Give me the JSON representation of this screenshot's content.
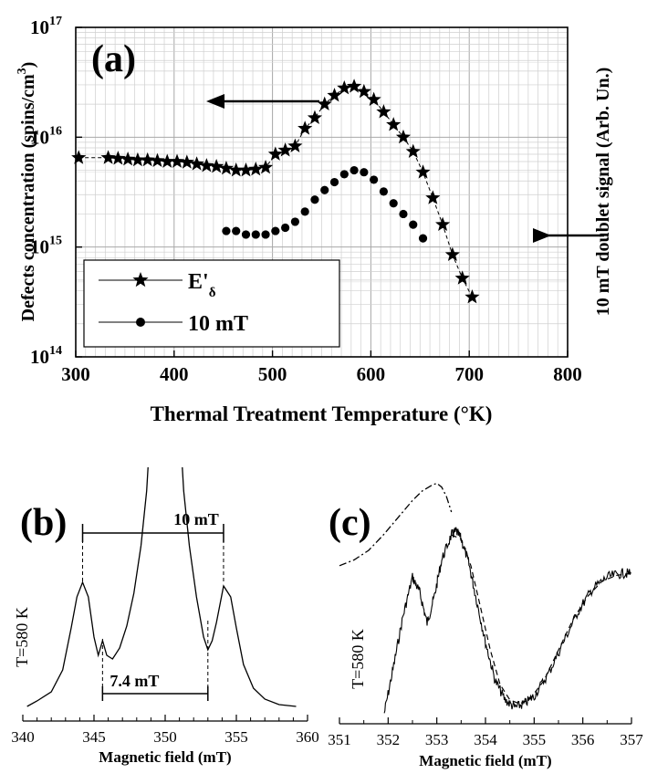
{
  "chart_data": [
    {
      "panel": "(a)",
      "type": "scatter",
      "xlabel": "Thermal Treatment Temperature (°K)",
      "ylabel_left": "Defects concentration (spins/cm",
      "ylabel_left_sup": "3",
      "ylabel_left_close": ")",
      "ylabel_right": "10 mT doublet signal (Arb. Un.)",
      "xlim": [
        300,
        800
      ],
      "ylim": [
        100000000000000.0,
        1e+17
      ],
      "yscale": "log",
      "grid": true,
      "xticks": [
        "300",
        "400",
        "500",
        "600",
        "700",
        "800"
      ],
      "yticks": [
        {
          "base": "10",
          "exp": "14"
        },
        {
          "base": "10",
          "exp": "15"
        },
        {
          "base": "10",
          "exp": "16"
        },
        {
          "base": "10",
          "exp": "17"
        }
      ],
      "legend_position": "bottom-left",
      "series": [
        {
          "name": "E'",
          "name_sub": "δ",
          "marker": "star",
          "x": [
            303,
            333,
            343,
            353,
            363,
            373,
            383,
            393,
            403,
            413,
            423,
            433,
            443,
            453,
            463,
            473,
            483,
            493,
            503,
            513,
            523,
            533,
            543,
            553,
            563,
            573,
            583,
            593,
            603,
            613,
            623,
            633,
            643,
            653,
            663,
            673,
            683,
            693,
            703
          ],
          "y": [
            6500000000000000.0,
            6500000000000000.0,
            6400000000000000.0,
            6300000000000000.0,
            6200000000000000.0,
            6200000000000000.0,
            6100000000000000.0,
            6000000000000000.0,
            6000000000000000.0,
            5900000000000000.0,
            5700000000000000.0,
            5500000000000000.0,
            5400000000000000.0,
            5200000000000000.0,
            5000000000000000.0,
            5000000000000000.0,
            5100000000000000.0,
            5300000000000000.0,
            7000000000000000.0,
            7600000000000000.0,
            8300000000000000.0,
            1.2e+16,
            1.5e+16,
            2e+16,
            2.4e+16,
            2.8e+16,
            2.9e+16,
            2.6e+16,
            2.2e+16,
            1.7e+16,
            1.3e+16,
            1e+16,
            7400000000000000.0,
            4800000000000000.0,
            2800000000000000.0,
            1600000000000000.0,
            850000000000000.0,
            520000000000000.0,
            350000000000000.0
          ]
        },
        {
          "name": "10 mT",
          "marker": "circle",
          "x": [
            453,
            463,
            473,
            483,
            493,
            503,
            513,
            523,
            533,
            543,
            553,
            563,
            573,
            583,
            593,
            603,
            613,
            623,
            633,
            643,
            653
          ],
          "y": [
            1400000000000000.0,
            1400000000000000.0,
            1300000000000000.0,
            1300000000000000.0,
            1300000000000000.0,
            1400000000000000.0,
            1500000000000000.0,
            1700000000000000.0,
            2100000000000000.0,
            2700000000000000.0,
            3300000000000000.0,
            3900000000000000.0,
            4600000000000000.0,
            5000000000000000.0,
            4800000000000000.0,
            4100000000000000.0,
            3200000000000000.0,
            2500000000000000.0,
            2000000000000000.0,
            1600000000000000.0,
            1200000000000000.0
          ]
        }
      ],
      "annotations": {
        "panel_label": "(a)"
      }
    },
    {
      "panel": "(b)",
      "type": "line",
      "xlabel": "Magnetic field (mT)",
      "xlim": [
        340,
        360
      ],
      "xticks": [
        "340",
        "345",
        "350",
        "355",
        "360"
      ],
      "annotations": {
        "panel_label": "(b)",
        "temperature": "T=580 K",
        "outer_splitting": "10 mT",
        "inner_splitting": "7.4 mT",
        "outer_lines_x": [
          344.2,
          354.1
        ],
        "inner_lines_x": [
          345.6,
          353.0
        ]
      },
      "x": [
        340.3,
        341.0,
        342.0,
        342.8,
        343.4,
        343.8,
        344.2,
        344.6,
        345.0,
        345.3,
        345.6,
        345.9,
        346.3,
        346.8,
        347.3,
        347.8,
        348.3,
        348.7,
        349.0,
        351.0,
        351.3,
        351.7,
        352.2,
        352.7,
        353.0,
        353.3,
        353.6,
        354.1,
        354.6,
        355.0,
        355.5,
        356.2,
        357.0,
        358.0,
        359.2
      ],
      "y": [
        0.02,
        0.05,
        0.1,
        0.22,
        0.45,
        0.62,
        0.7,
        0.62,
        0.4,
        0.3,
        0.38,
        0.3,
        0.28,
        0.34,
        0.46,
        0.64,
        0.9,
        1.2,
        1.6,
        1.6,
        1.2,
        0.9,
        0.62,
        0.4,
        0.33,
        0.38,
        0.48,
        0.68,
        0.62,
        0.45,
        0.25,
        0.12,
        0.06,
        0.03,
        0.02
      ]
    },
    {
      "panel": "(c)",
      "type": "line",
      "xlabel": "Magnetic field (mT)",
      "xlim": [
        351,
        357
      ],
      "xticks": [
        "351",
        "352",
        "353",
        "354",
        "355",
        "356",
        "357"
      ],
      "annotations": {
        "panel_label": "(c)",
        "temperature": "T=580 K"
      },
      "series": [
        {
          "style": "solid",
          "x": [
            351.92,
            352.1,
            352.3,
            352.5,
            352.65,
            352.8,
            352.95,
            353.1,
            353.3,
            353.4,
            353.5,
            353.65,
            353.8,
            354.0,
            354.2,
            354.4,
            354.6,
            354.8,
            355.0,
            355.3,
            355.6,
            355.9,
            356.2,
            356.5,
            356.8,
            357.0
          ],
          "y": [
            0.05,
            0.28,
            0.55,
            0.76,
            0.68,
            0.52,
            0.66,
            0.85,
            0.98,
            1.0,
            0.96,
            0.84,
            0.66,
            0.42,
            0.22,
            0.12,
            0.08,
            0.1,
            0.14,
            0.26,
            0.42,
            0.58,
            0.7,
            0.76,
            0.78,
            0.78
          ]
        },
        {
          "style": "dashdot",
          "x": [
            351.0,
            351.3,
            351.6,
            351.9,
            352.2,
            352.5,
            352.7,
            352.9,
            353.0,
            353.1,
            353.2,
            353.3
          ],
          "y": [
            0.82,
            0.85,
            0.9,
            0.98,
            1.07,
            1.16,
            1.21,
            1.24,
            1.25,
            1.23,
            1.18,
            1.1
          ]
        }
      ]
    }
  ]
}
